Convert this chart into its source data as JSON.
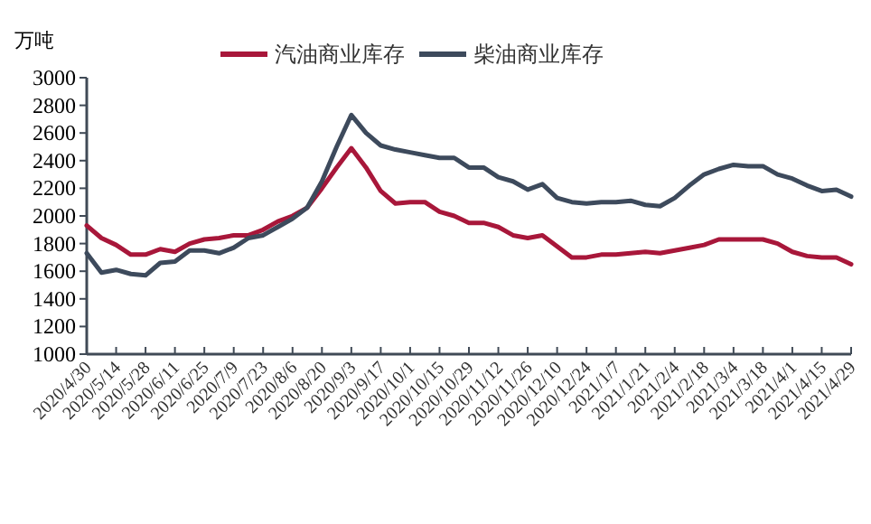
{
  "chart_data": {
    "type": "line",
    "ylabel": "万吨",
    "categories": [
      "2020/4/30",
      null,
      "2020/5/14",
      null,
      "2020/5/28",
      null,
      "2020/6/11",
      null,
      "2020/6/25",
      null,
      "2020/7/9",
      null,
      "2020/7/23",
      null,
      "2020/8/6",
      null,
      "2020/8/20",
      null,
      "2020/9/3",
      null,
      "2020/9/17",
      null,
      "2020/10/1",
      null,
      "2020/10/15",
      null,
      "2020/10/29",
      null,
      "2020/11/12",
      null,
      "2020/11/26",
      null,
      "2020/12/10",
      null,
      "2020/12/24",
      null,
      "2021/1/7",
      null,
      "2021/1/21",
      null,
      "2021/2/4",
      null,
      "2021/2/18",
      null,
      "2021/3/4",
      null,
      "2021/3/18",
      null,
      "2021/4/1",
      null,
      "2021/4/15",
      null,
      "2021/4/29"
    ],
    "series": [
      {
        "name": "汽油商业库存",
        "color": "#a8173a",
        "values": [
          1930,
          1840,
          1790,
          1720,
          1720,
          1760,
          1740,
          1800,
          1830,
          1840,
          1860,
          1860,
          1900,
          1960,
          2000,
          2060,
          2200,
          2350,
          2490,
          2350,
          2180,
          2090,
          2100,
          2100,
          2030,
          2000,
          1950,
          1950,
          1920,
          1860,
          1840,
          1860,
          1780,
          1700,
          1700,
          1720,
          1720,
          1730,
          1740,
          1730,
          1750,
          1770,
          1790,
          1830,
          1830,
          1830,
          1830,
          1800,
          1740,
          1710,
          1700,
          1700,
          1650
        ]
      },
      {
        "name": "柴油商业库存",
        "color": "#3d4a5c",
        "values": [
          1730,
          1590,
          1610,
          1580,
          1570,
          1660,
          1670,
          1750,
          1750,
          1730,
          1770,
          1840,
          1860,
          1920,
          1980,
          2060,
          2250,
          2500,
          2730,
          2600,
          2510,
          2480,
          2460,
          2440,
          2420,
          2420,
          2350,
          2350,
          2280,
          2250,
          2190,
          2230,
          2130,
          2100,
          2090,
          2100,
          2100,
          2110,
          2080,
          2070,
          2130,
          2220,
          2300,
          2340,
          2370,
          2360,
          2360,
          2300,
          2270,
          2220,
          2180,
          2190,
          2140
        ]
      }
    ],
    "ylim": [
      1000,
      3000
    ],
    "yticks": [
      1000,
      1200,
      1400,
      1600,
      1800,
      2000,
      2200,
      2400,
      2600,
      2800,
      3000
    ],
    "grid": false,
    "legend": "top",
    "line_style": "solid"
  }
}
